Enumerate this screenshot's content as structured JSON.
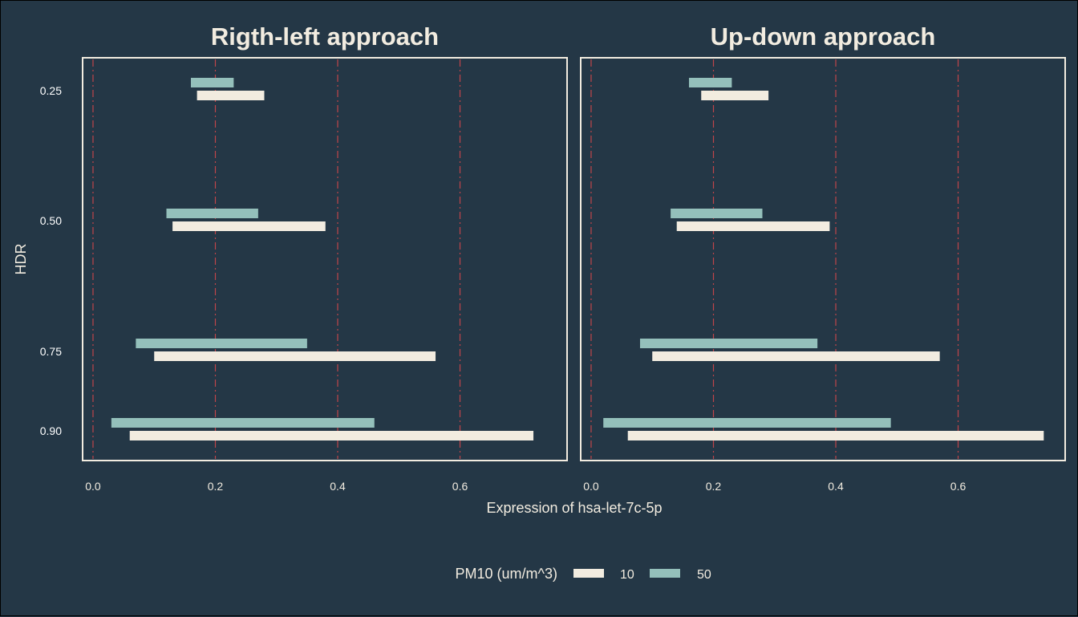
{
  "chart_data": {
    "type": "bar",
    "orientation": "horizontal-interval",
    "xlabel": "Expression of hsa-let-7c-5p",
    "ylabel": "HDR",
    "x_ticks": [
      "0.0",
      "0.2",
      "0.4",
      "0.6"
    ],
    "x_tick_values": [
      0.0,
      0.2,
      0.4,
      0.6
    ],
    "xlim": [
      -0.017,
      0.775
    ],
    "categories": [
      "0.25",
      "0.50",
      "0.75",
      "0.90"
    ],
    "reference_lines": [
      0.0,
      0.2,
      0.4,
      0.6
    ],
    "legend": {
      "title": "PM10 (um/m^3)",
      "position": "bottom",
      "entries": [
        {
          "label": "10",
          "color": "#f2ece0"
        },
        {
          "label": "50",
          "color": "#94c0bb"
        }
      ]
    },
    "panels": [
      {
        "title": "Rigth-left approach",
        "series": [
          {
            "name": "10",
            "color": "#f2ece0",
            "intervals": [
              [
                0.17,
                0.28
              ],
              [
                0.13,
                0.38
              ],
              [
                0.1,
                0.56
              ],
              [
                0.06,
                0.72
              ]
            ]
          },
          {
            "name": "50",
            "color": "#94c0bb",
            "intervals": [
              [
                0.16,
                0.23
              ],
              [
                0.12,
                0.27
              ],
              [
                0.07,
                0.35
              ],
              [
                0.03,
                0.46
              ]
            ]
          }
        ]
      },
      {
        "title": "Up-down approach",
        "series": [
          {
            "name": "10",
            "color": "#f2ece0",
            "intervals": [
              [
                0.18,
                0.29
              ],
              [
                0.14,
                0.39
              ],
              [
                0.1,
                0.57
              ],
              [
                0.06,
                0.74
              ]
            ]
          },
          {
            "name": "50",
            "color": "#94c0bb",
            "intervals": [
              [
                0.16,
                0.23
              ],
              [
                0.13,
                0.28
              ],
              [
                0.08,
                0.37
              ],
              [
                0.02,
                0.49
              ]
            ]
          }
        ]
      }
    ]
  },
  "colors": {
    "background": "#243746",
    "text": "#f2ece0",
    "reference_line": "#c0454a",
    "panel_border": "#f2ece0"
  }
}
